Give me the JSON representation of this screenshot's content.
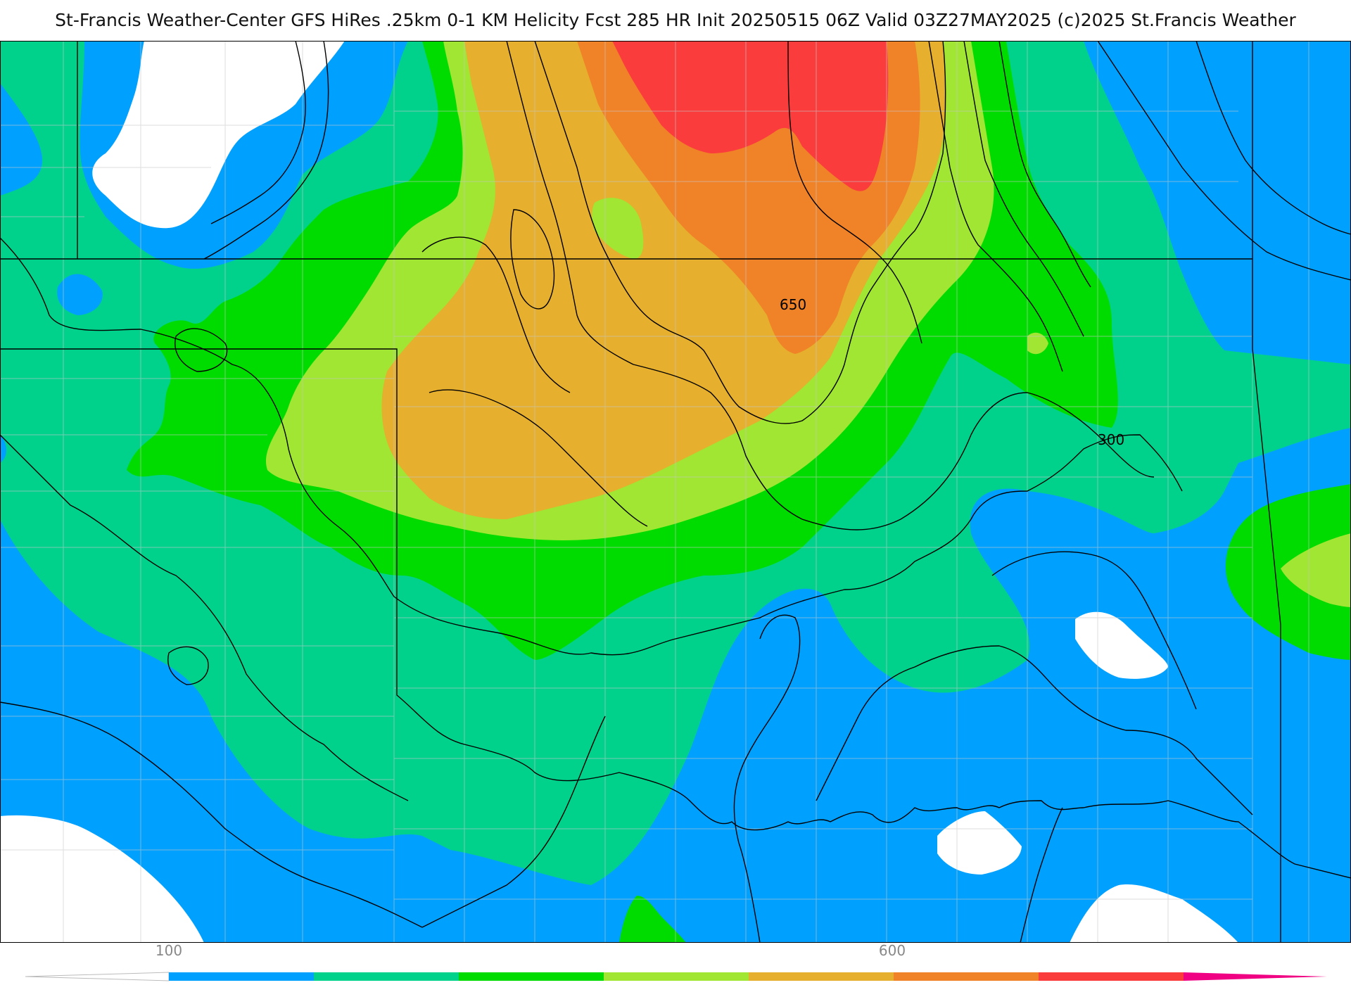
{
  "title": "St-Francis Weather-Center GFS HiRes .25km 0-1 KM Helicity Fcst 285 HR Init 20250515 06Z  Valid 03Z27MAY2025    (c)2025 St.Francis Weather",
  "map": {
    "background": "#00d28c",
    "fill_colors": {
      "under": "#ffffff",
      "band_100": "#00a0ff",
      "band_200": "#00d28c",
      "band_300": "#00dc00",
      "band_400": "#a0e632",
      "band_500": "#e6af2d",
      "band_600": "#f08228",
      "band_700": "#fa3c3c",
      "over": "#f00082"
    },
    "contour_labels": [
      "650",
      "300"
    ],
    "contour_color": "#000000",
    "border_color": "#000000",
    "county_line_color": "#c8c8c8"
  },
  "colorbar": {
    "tick_labels": [
      "100",
      "600"
    ],
    "tick_label_color": "#888888"
  }
}
